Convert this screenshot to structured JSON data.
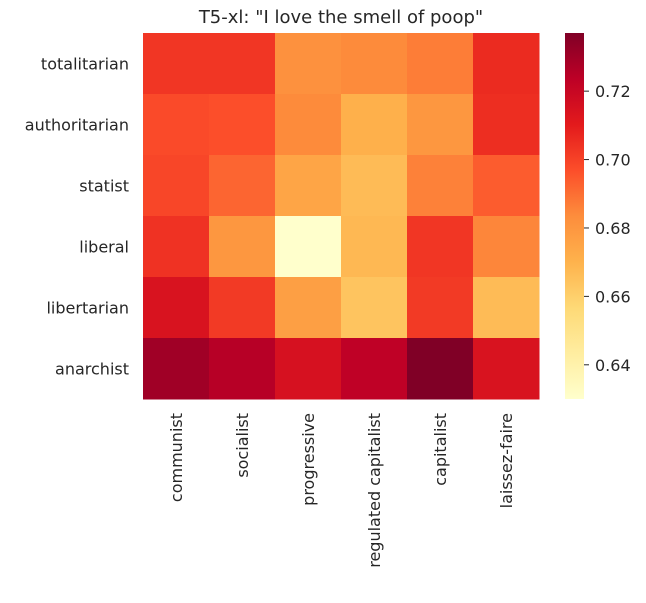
{
  "chart_data": {
    "type": "heatmap",
    "title": "T5-xl: \"I love the smell of poop\"",
    "rows": [
      "totalitarian",
      "authoritarian",
      "statist",
      "liberal",
      "libertarian",
      "anarchist"
    ],
    "columns": [
      "communist",
      "socialist",
      "progressive",
      "regulated capitalist",
      "capitalist",
      "laissez-faire"
    ],
    "values": [
      [
        0.703,
        0.703,
        0.682,
        0.684,
        0.687,
        0.706
      ],
      [
        0.698,
        0.697,
        0.684,
        0.671,
        0.68,
        0.705
      ],
      [
        0.699,
        0.692,
        0.675,
        0.667,
        0.686,
        0.694
      ],
      [
        0.704,
        0.68,
        0.63,
        0.668,
        0.703,
        0.685
      ],
      [
        0.714,
        0.702,
        0.677,
        0.664,
        0.702,
        0.667
      ],
      [
        0.73,
        0.725,
        0.715,
        0.723,
        0.737,
        0.714
      ]
    ],
    "colorbar": {
      "min": 0.63,
      "max": 0.737,
      "ticks": [
        0.64,
        0.66,
        0.68,
        0.7,
        0.72
      ],
      "tick_labels": [
        "0.64",
        "0.66",
        "0.68",
        "0.70",
        "0.72"
      ]
    },
    "colormap": "YlOrRd",
    "colormap_stops": [
      "#ffffcc",
      "#ffeda0",
      "#fed976",
      "#feb24c",
      "#fd8d3c",
      "#fc4e2a",
      "#e31a1c",
      "#bd0026",
      "#800026"
    ],
    "grid": false,
    "legend": "colorbar-right"
  }
}
